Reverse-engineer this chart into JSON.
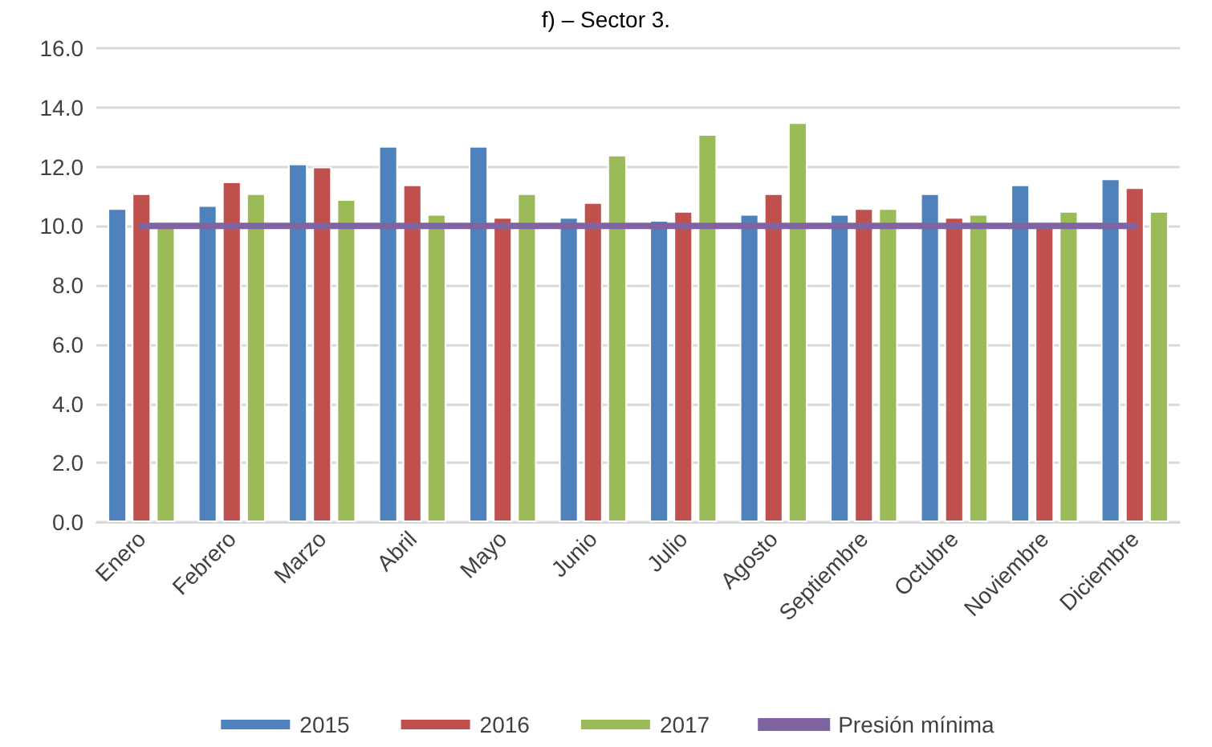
{
  "chart_data": {
    "type": "bar",
    "title": "f) – Sector 3.",
    "categories": [
      "Enero",
      "Febrero",
      "Marzo",
      "Abril",
      "Mayo",
      "Junio",
      "Julio",
      "Agosto",
      "Septiembre",
      "Octubre",
      "Noviembre",
      "Diciembre"
    ],
    "series": [
      {
        "name": "2015",
        "color": "#4f81bd",
        "values": [
          10.6,
          10.7,
          12.1,
          12.7,
          12.7,
          10.3,
          10.2,
          10.4,
          10.4,
          11.1,
          11.4,
          11.6
        ]
      },
      {
        "name": "2016",
        "color": "#c0504d",
        "values": [
          11.1,
          11.5,
          12.0,
          11.4,
          10.3,
          10.8,
          10.5,
          11.1,
          10.6,
          10.3,
          10.0,
          11.3
        ]
      },
      {
        "name": "2017",
        "color": "#9bbb59",
        "values": [
          10.0,
          11.1,
          10.9,
          10.4,
          11.1,
          12.4,
          13.1,
          13.5,
          10.6,
          10.4,
          10.5,
          10.5
        ]
      },
      {
        "name": "Presión mínima",
        "type": "line",
        "color": "#8064a2",
        "marker": "none",
        "line_style": "solid",
        "values": [
          10.0,
          10.0,
          10.0,
          10.0,
          10.0,
          10.0,
          10.0,
          10.0,
          10.0,
          10.0,
          10.0,
          10.0
        ]
      }
    ],
    "ylim": [
      0,
      16
    ],
    "yticks": [
      {
        "value": 0,
        "label": "0.0"
      },
      {
        "value": 2,
        "label": "2.0"
      },
      {
        "value": 4,
        "label": "4.0"
      },
      {
        "value": 6,
        "label": "6.0"
      },
      {
        "value": 8,
        "label": "8.0"
      },
      {
        "value": 10,
        "label": "10.0"
      },
      {
        "value": 12,
        "label": "12.0"
      },
      {
        "value": 14,
        "label": "14.0"
      },
      {
        "value": 16,
        "label": "16.0"
      }
    ],
    "grid": "y",
    "legend": "bottom"
  }
}
